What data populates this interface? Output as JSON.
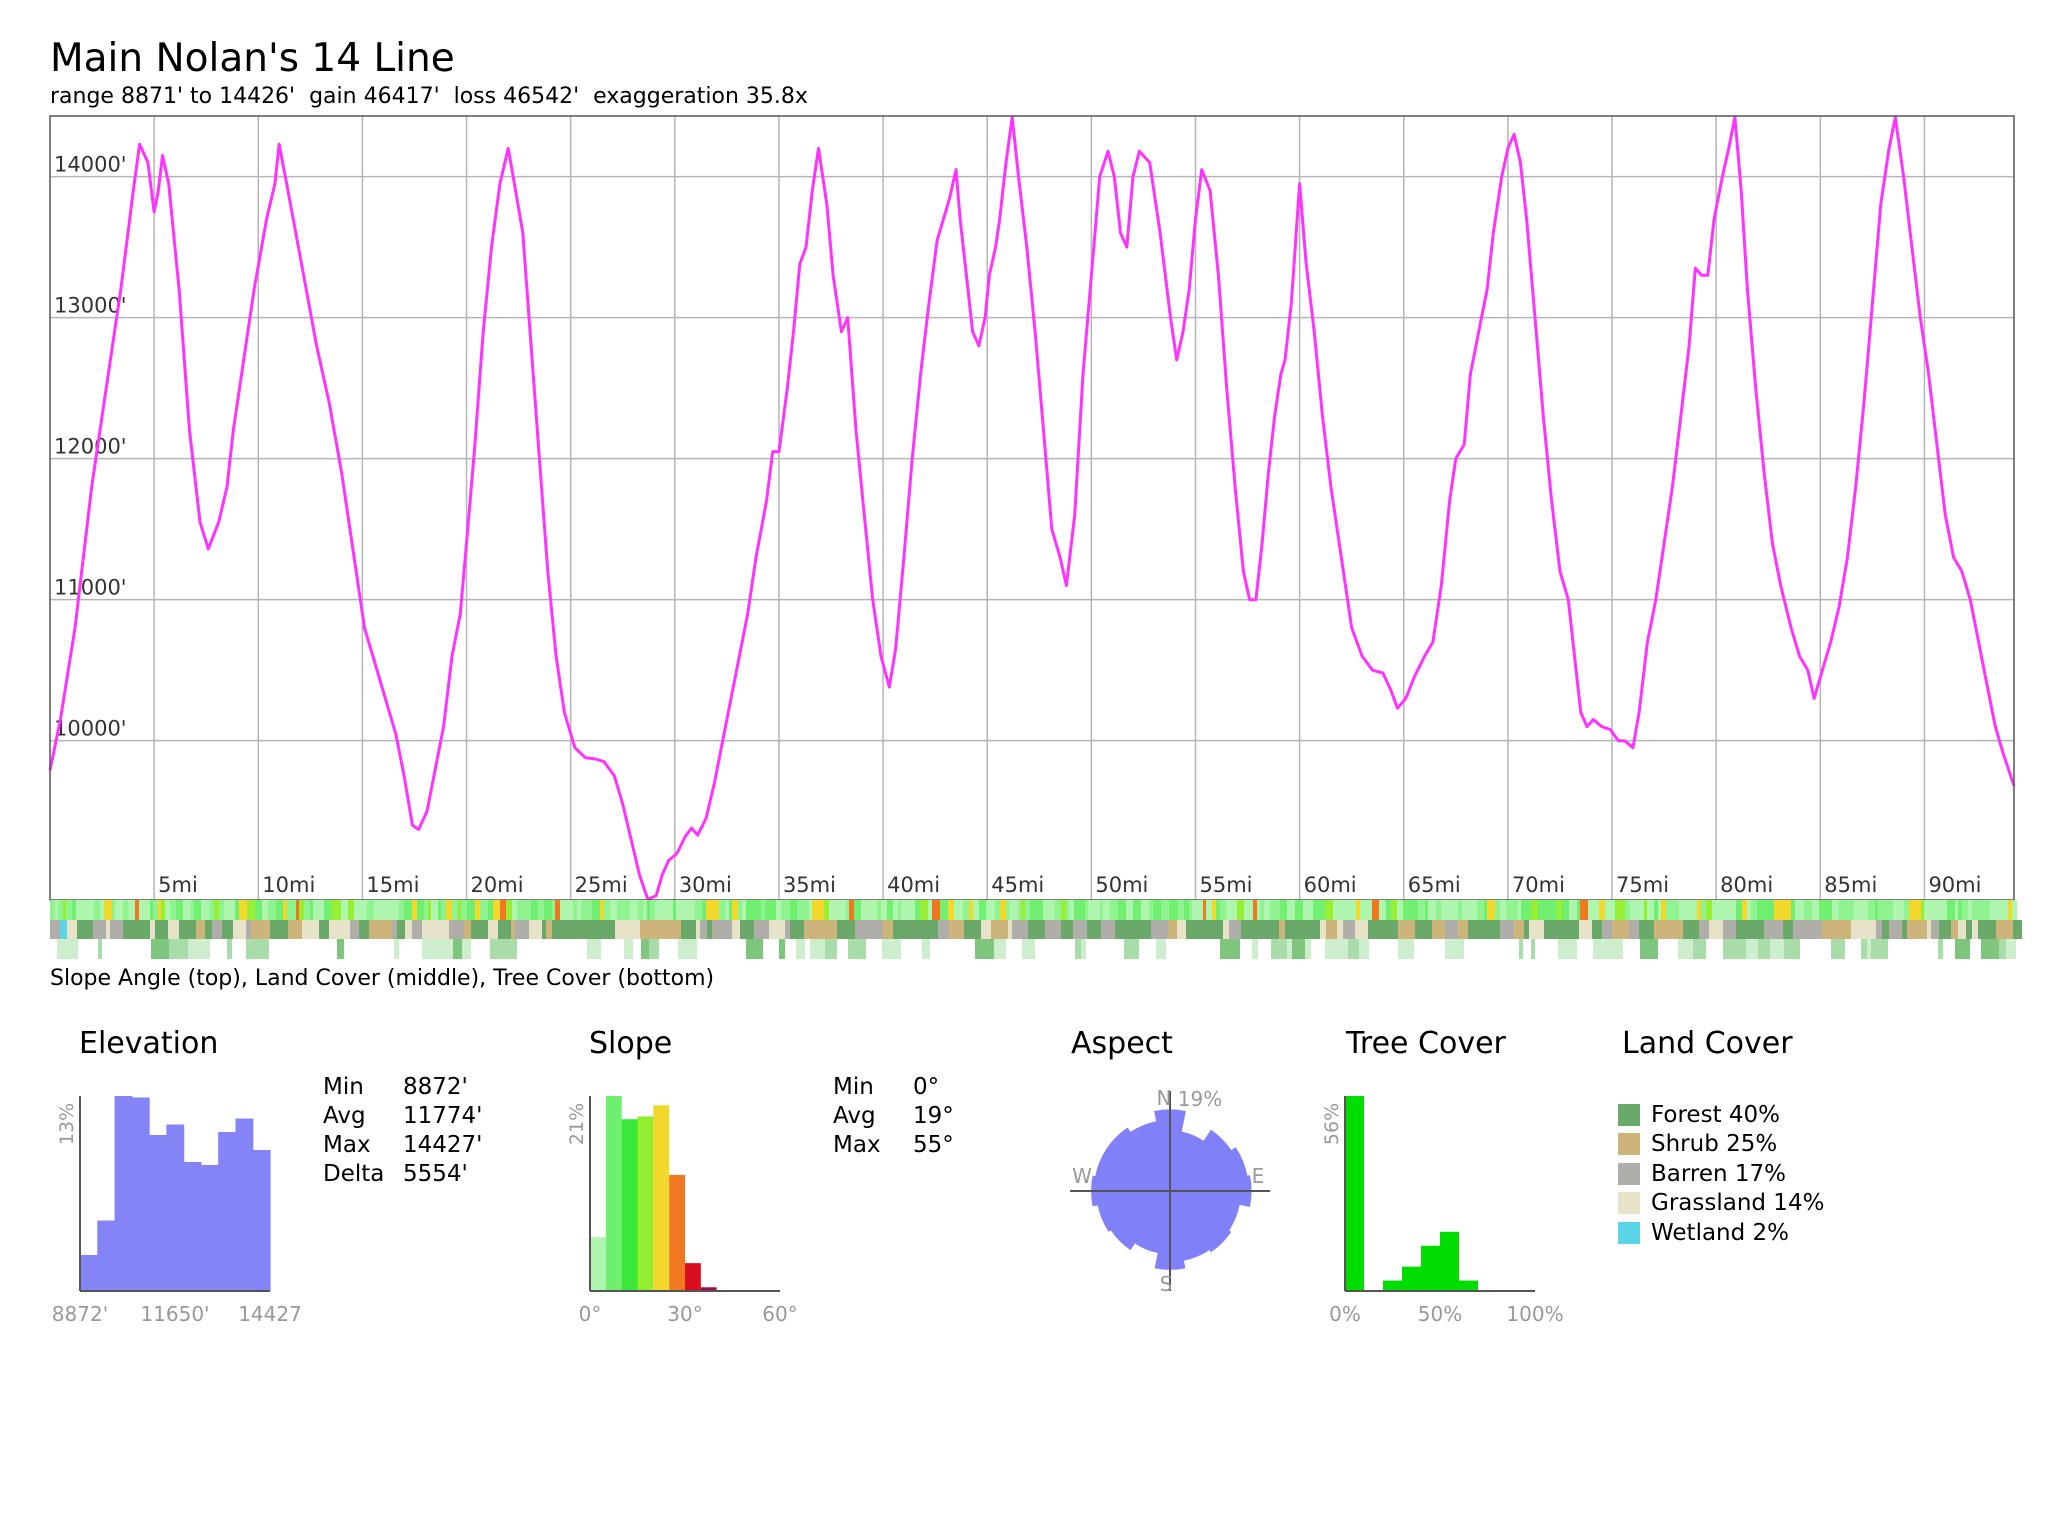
{
  "title": "Main Nolan's 14 Line",
  "subtitle": "range 8871' to 14426'  gain 46417'  loss 46542'  exaggeration 35.8x",
  "strip_caption": "Slope Angle (top), Land Cover (middle), Tree Cover (bottom)",
  "colors": {
    "profile_line": "#ff33ff",
    "grid": "#b5b5b5",
    "histogram_elevation": "#8484f7",
    "aspect_fill": "#8080f8",
    "tree_green": "#00dd00",
    "forest": "#6aa96a",
    "shrub": "#cdb47b",
    "barren": "#b0aea8",
    "grassland": "#e6e3c9",
    "wetland": "#5ad5e8"
  },
  "chart_data": [
    {
      "id": "elevation-profile",
      "type": "line",
      "x_unit": "mi",
      "y_unit": "ft",
      "xlim": [
        0,
        94.3
      ],
      "ylim": [
        8870,
        14430
      ],
      "y_ticks": [
        {
          "value": 10000,
          "label": "10000'"
        },
        {
          "value": 11000,
          "label": "11000'"
        },
        {
          "value": 12000,
          "label": "12000'"
        },
        {
          "value": 13000,
          "label": "13000'"
        },
        {
          "value": 14000,
          "label": "14000'"
        }
      ],
      "x_ticks": [
        {
          "value": 5,
          "label": "5mi"
        },
        {
          "value": 10,
          "label": "10mi"
        },
        {
          "value": 15,
          "label": "15mi"
        },
        {
          "value": 20,
          "label": "20mi"
        },
        {
          "value": 25,
          "label": "25mi"
        },
        {
          "value": 30,
          "label": "30mi"
        },
        {
          "value": 35,
          "label": "35mi"
        },
        {
          "value": 40,
          "label": "40mi"
        },
        {
          "value": 45,
          "label": "45mi"
        },
        {
          "value": 50,
          "label": "50mi"
        },
        {
          "value": 55,
          "label": "55mi"
        },
        {
          "value": 60,
          "label": "60mi"
        },
        {
          "value": 65,
          "label": "65mi"
        },
        {
          "value": 70,
          "label": "70mi"
        },
        {
          "value": 75,
          "label": "75mi"
        },
        {
          "value": 80,
          "label": "80mi"
        },
        {
          "value": 85,
          "label": "85mi"
        },
        {
          "value": 90,
          "label": "90mi"
        }
      ],
      "grid": true,
      "points": [
        [
          0,
          9790
        ],
        [
          0.5,
          10150
        ],
        [
          1.2,
          10800
        ],
        [
          2,
          11800
        ],
        [
          2.8,
          12600
        ],
        [
          3.4,
          13200
        ],
        [
          4,
          13900
        ],
        [
          4.3,
          14230
        ],
        [
          4.7,
          14100
        ],
        [
          5,
          13750
        ],
        [
          5.2,
          13900
        ],
        [
          5.4,
          14150
        ],
        [
          5.7,
          13950
        ],
        [
          6.2,
          13200
        ],
        [
          6.7,
          12200
        ],
        [
          7.2,
          11550
        ],
        [
          7.6,
          11360
        ],
        [
          8.1,
          11550
        ],
        [
          8.5,
          11800
        ],
        [
          8.8,
          12200
        ],
        [
          9.3,
          12700
        ],
        [
          9.8,
          13200
        ],
        [
          10.4,
          13700
        ],
        [
          10.8,
          13950
        ],
        [
          11,
          14230
        ],
        [
          11.3,
          14000
        ],
        [
          11.8,
          13600
        ],
        [
          12.3,
          13200
        ],
        [
          12.8,
          12800
        ],
        [
          13.4,
          12400
        ],
        [
          14,
          11900
        ],
        [
          14.6,
          11300
        ],
        [
          15.1,
          10800
        ],
        [
          15.6,
          10550
        ],
        [
          16.1,
          10300
        ],
        [
          16.6,
          10050
        ],
        [
          17,
          9750
        ],
        [
          17.4,
          9400
        ],
        [
          17.7,
          9370
        ],
        [
          18.1,
          9500
        ],
        [
          18.5,
          9800
        ],
        [
          18.9,
          10100
        ],
        [
          19.3,
          10600
        ],
        [
          19.7,
          10900
        ],
        [
          20,
          11400
        ],
        [
          20.4,
          12100
        ],
        [
          20.8,
          12900
        ],
        [
          21.2,
          13500
        ],
        [
          21.6,
          13950
        ],
        [
          22,
          14200
        ],
        [
          22.3,
          13950
        ],
        [
          22.7,
          13600
        ],
        [
          23.1,
          12800
        ],
        [
          23.5,
          12000
        ],
        [
          23.9,
          11200
        ],
        [
          24.3,
          10600
        ],
        [
          24.7,
          10200
        ],
        [
          25.2,
          9950
        ],
        [
          25.7,
          9880
        ],
        [
          26.2,
          9870
        ],
        [
          26.6,
          9850
        ],
        [
          27.1,
          9750
        ],
        [
          27.5,
          9550
        ],
        [
          27.9,
          9300
        ],
        [
          28.3,
          9050
        ],
        [
          28.7,
          8875
        ],
        [
          29.1,
          8900
        ],
        [
          29.4,
          9050
        ],
        [
          29.7,
          9150
        ],
        [
          30.1,
          9200
        ],
        [
          30.5,
          9320
        ],
        [
          30.8,
          9380
        ],
        [
          31.1,
          9330
        ],
        [
          31.5,
          9450
        ],
        [
          31.9,
          9700
        ],
        [
          32.3,
          10000
        ],
        [
          32.7,
          10300
        ],
        [
          33.1,
          10600
        ],
        [
          33.5,
          10900
        ],
        [
          33.9,
          11300
        ],
        [
          34.4,
          11700
        ],
        [
          34.7,
          12050
        ],
        [
          35,
          12050
        ],
        [
          35.4,
          12500
        ],
        [
          35.7,
          12900
        ],
        [
          36,
          13380
        ],
        [
          36.3,
          13500
        ],
        [
          36.6,
          13900
        ],
        [
          36.9,
          14200
        ],
        [
          37.3,
          13800
        ],
        [
          37.6,
          13300
        ],
        [
          38,
          12900
        ],
        [
          38.3,
          13000
        ],
        [
          38.7,
          12200
        ],
        [
          39.1,
          11600
        ],
        [
          39.5,
          11000
        ],
        [
          39.9,
          10600
        ],
        [
          40.3,
          10380
        ],
        [
          40.6,
          10650
        ],
        [
          41,
          11300
        ],
        [
          41.4,
          12000
        ],
        [
          41.8,
          12600
        ],
        [
          42.2,
          13100
        ],
        [
          42.6,
          13550
        ],
        [
          42.9,
          13700
        ],
        [
          43.2,
          13850
        ],
        [
          43.5,
          14050
        ],
        [
          43.7,
          13700
        ],
        [
          44,
          13300
        ],
        [
          44.3,
          12900
        ],
        [
          44.6,
          12800
        ],
        [
          44.9,
          13000
        ],
        [
          45.1,
          13300
        ],
        [
          45.4,
          13500
        ],
        [
          45.6,
          13700
        ],
        [
          45.9,
          14100
        ],
        [
          46.2,
          14420
        ],
        [
          46.5,
          14000
        ],
        [
          46.9,
          13500
        ],
        [
          47.3,
          12900
        ],
        [
          47.7,
          12200
        ],
        [
          48.1,
          11500
        ],
        [
          48.5,
          11300
        ],
        [
          48.8,
          11100
        ],
        [
          49.2,
          11600
        ],
        [
          49.6,
          12600
        ],
        [
          50,
          13300
        ],
        [
          50.4,
          14000
        ],
        [
          50.8,
          14180
        ],
        [
          51.1,
          14000
        ],
        [
          51.4,
          13600
        ],
        [
          51.7,
          13500
        ],
        [
          52,
          14000
        ],
        [
          52.3,
          14180
        ],
        [
          52.8,
          14100
        ],
        [
          53.3,
          13600
        ],
        [
          53.8,
          13000
        ],
        [
          54.1,
          12700
        ],
        [
          54.4,
          12900
        ],
        [
          54.7,
          13200
        ],
        [
          55,
          13700
        ],
        [
          55.3,
          14050
        ],
        [
          55.7,
          13900
        ],
        [
          56.1,
          13300
        ],
        [
          56.5,
          12500
        ],
        [
          56.9,
          11800
        ],
        [
          57.3,
          11200
        ],
        [
          57.6,
          11000
        ],
        [
          57.9,
          11000
        ],
        [
          58.2,
          11400
        ],
        [
          58.5,
          11900
        ],
        [
          58.8,
          12300
        ],
        [
          59.1,
          12600
        ],
        [
          59.3,
          12700
        ],
        [
          59.6,
          13100
        ],
        [
          60,
          13950
        ],
        [
          60.3,
          13400
        ],
        [
          60.7,
          12900
        ],
        [
          61.1,
          12300
        ],
        [
          61.5,
          11800
        ],
        [
          62,
          11300
        ],
        [
          62.5,
          10800
        ],
        [
          63,
          10600
        ],
        [
          63.5,
          10500
        ],
        [
          64,
          10480
        ],
        [
          64.4,
          10350
        ],
        [
          64.7,
          10230
        ],
        [
          65.1,
          10300
        ],
        [
          65.5,
          10450
        ],
        [
          66,
          10600
        ],
        [
          66.4,
          10700
        ],
        [
          66.8,
          11100
        ],
        [
          67.2,
          11700
        ],
        [
          67.5,
          12000
        ],
        [
          67.9,
          12100
        ],
        [
          68.2,
          12600
        ],
        [
          68.6,
          12900
        ],
        [
          69,
          13200
        ],
        [
          69.3,
          13600
        ],
        [
          69.7,
          14000
        ],
        [
          70,
          14200
        ],
        [
          70.3,
          14300
        ],
        [
          70.6,
          14100
        ],
        [
          70.9,
          13700
        ],
        [
          71.3,
          13000
        ],
        [
          71.7,
          12300
        ],
        [
          72.1,
          11700
        ],
        [
          72.5,
          11200
        ],
        [
          72.9,
          11000
        ],
        [
          73.2,
          10600
        ],
        [
          73.5,
          10200
        ],
        [
          73.8,
          10100
        ],
        [
          74.1,
          10150
        ],
        [
          74.5,
          10100
        ],
        [
          74.9,
          10080
        ],
        [
          75.3,
          10000
        ],
        [
          75.6,
          10000
        ],
        [
          76,
          9950
        ],
        [
          76.3,
          10200
        ],
        [
          76.7,
          10700
        ],
        [
          77.1,
          11000
        ],
        [
          77.5,
          11400
        ],
        [
          77.9,
          11800
        ],
        [
          78.3,
          12300
        ],
        [
          78.7,
          12800
        ],
        [
          79,
          13350
        ],
        [
          79.3,
          13300
        ],
        [
          79.6,
          13300
        ],
        [
          79.9,
          13700
        ],
        [
          80.3,
          14000
        ],
        [
          80.6,
          14200
        ],
        [
          80.9,
          14420
        ],
        [
          81.2,
          13900
        ],
        [
          81.5,
          13200
        ],
        [
          81.9,
          12500
        ],
        [
          82.3,
          11900
        ],
        [
          82.7,
          11400
        ],
        [
          83.1,
          11100
        ],
        [
          83.6,
          10800
        ],
        [
          84,
          10600
        ],
        [
          84.4,
          10500
        ],
        [
          84.7,
          10300
        ],
        [
          85.1,
          10500
        ],
        [
          85.5,
          10700
        ],
        [
          85.9,
          10950
        ],
        [
          86.3,
          11300
        ],
        [
          86.7,
          11800
        ],
        [
          87.1,
          12400
        ],
        [
          87.5,
          13100
        ],
        [
          87.9,
          13800
        ],
        [
          88.3,
          14200
        ],
        [
          88.6,
          14420
        ],
        [
          89,
          14000
        ],
        [
          89.4,
          13500
        ],
        [
          89.8,
          13000
        ],
        [
          90.2,
          12600
        ],
        [
          90.6,
          12100
        ],
        [
          91,
          11600
        ],
        [
          91.4,
          11300
        ],
        [
          91.8,
          11200
        ],
        [
          92.2,
          11000
        ],
        [
          92.6,
          10700
        ],
        [
          93,
          10400
        ],
        [
          93.4,
          10100
        ],
        [
          93.8,
          9900
        ],
        [
          94.3,
          9680
        ]
      ]
    },
    {
      "id": "elevation-histogram",
      "type": "bar",
      "title": "Elevation",
      "x_unit": "ft",
      "y_axis_label": "13%",
      "x_tick_labels": [
        "8872'",
        "11650'",
        "14427"
      ],
      "xlim": [
        8872,
        14427
      ],
      "ylim": [
        0,
        13
      ],
      "values": [
        2.4,
        4.7,
        13,
        12.9,
        10.4,
        11.1,
        8.6,
        8.4,
        10.6,
        11.5,
        9.4
      ]
    },
    {
      "id": "slope-histogram",
      "type": "bar",
      "title": "Slope",
      "x_unit": "deg",
      "y_axis_label": "21%",
      "x_tick_labels": [
        "0°",
        "30°",
        "60°"
      ],
      "xlim": [
        0,
        60
      ],
      "ylim": [
        0,
        21
      ],
      "bin_width": 5,
      "values": [
        5.8,
        21,
        18.5,
        18.8,
        20,
        12.5,
        3,
        0.4,
        0.1,
        0.05,
        0,
        0
      ],
      "bin_colors": [
        "#aef5ae",
        "#6fef6f",
        "#3ae83a",
        "#92ee2f",
        "#f1d82b",
        "#ef7820",
        "#d90d20",
        "#9b0f4c",
        "#551a55",
        "#331133",
        "#000000",
        "#000000"
      ]
    },
    {
      "id": "aspect-rose",
      "type": "pie",
      "title": "Aspect",
      "max_label": "19%",
      "direction_labels": [
        "N",
        "E",
        "S",
        "W"
      ],
      "values": [
        15.5,
        11.5,
        14,
        15,
        15.5,
        13.5,
        14,
        13.5,
        15,
        12,
        13.5,
        14,
        15,
        14.5,
        14.5,
        13.5
      ]
    },
    {
      "id": "tree-cover-histogram",
      "type": "bar",
      "title": "Tree Cover",
      "x_unit": "%",
      "y_axis_label": "56%",
      "x_tick_labels": [
        "0%",
        "50%",
        "100%"
      ],
      "xlim": [
        0,
        100
      ],
      "ylim": [
        0,
        56
      ],
      "bin_width": 10,
      "values": [
        56,
        0,
        3,
        7,
        13,
        17,
        3,
        0,
        0,
        0
      ]
    }
  ],
  "strips": {
    "slope_palette": [
      "#aef5ae",
      "#8ff38f",
      "#70ef70",
      "#98ee33",
      "#f1d82b",
      "#ef7820"
    ],
    "land_palette": [
      "#6aa96a",
      "#cdb47b",
      "#b0aea8",
      "#e6e3c9",
      "#5ad5e8"
    ],
    "tree_palette": [
      "#ffffff",
      "#cdeecd",
      "#a8dca8",
      "#7ec67e"
    ]
  },
  "elevation_stats": [
    {
      "label": "Min",
      "value": "8872'"
    },
    {
      "label": "Avg",
      "value": "11774'"
    },
    {
      "label": "Max",
      "value": "14427'"
    },
    {
      "label": "Delta",
      "value": "5554'"
    }
  ],
  "slope_stats": [
    {
      "label": "Min",
      "value": "0°"
    },
    {
      "label": "Avg",
      "value": "19°"
    },
    {
      "label": "Max",
      "value": "55°"
    }
  ],
  "panels": {
    "elevation": "Elevation",
    "slope": "Slope",
    "aspect": "Aspect",
    "tree_cover": "Tree Cover",
    "land_cover": "Land Cover"
  },
  "land_cover_legend": [
    {
      "label": "Forest 40%",
      "color": "#6aa96a"
    },
    {
      "label": "Shrub 25%",
      "color": "#cdb47b"
    },
    {
      "label": "Barren 17%",
      "color": "#b0aea8"
    },
    {
      "label": "Grassland 14%",
      "color": "#e6e3c9"
    },
    {
      "label": "Wetland 2%",
      "color": "#5ad5e8"
    }
  ]
}
